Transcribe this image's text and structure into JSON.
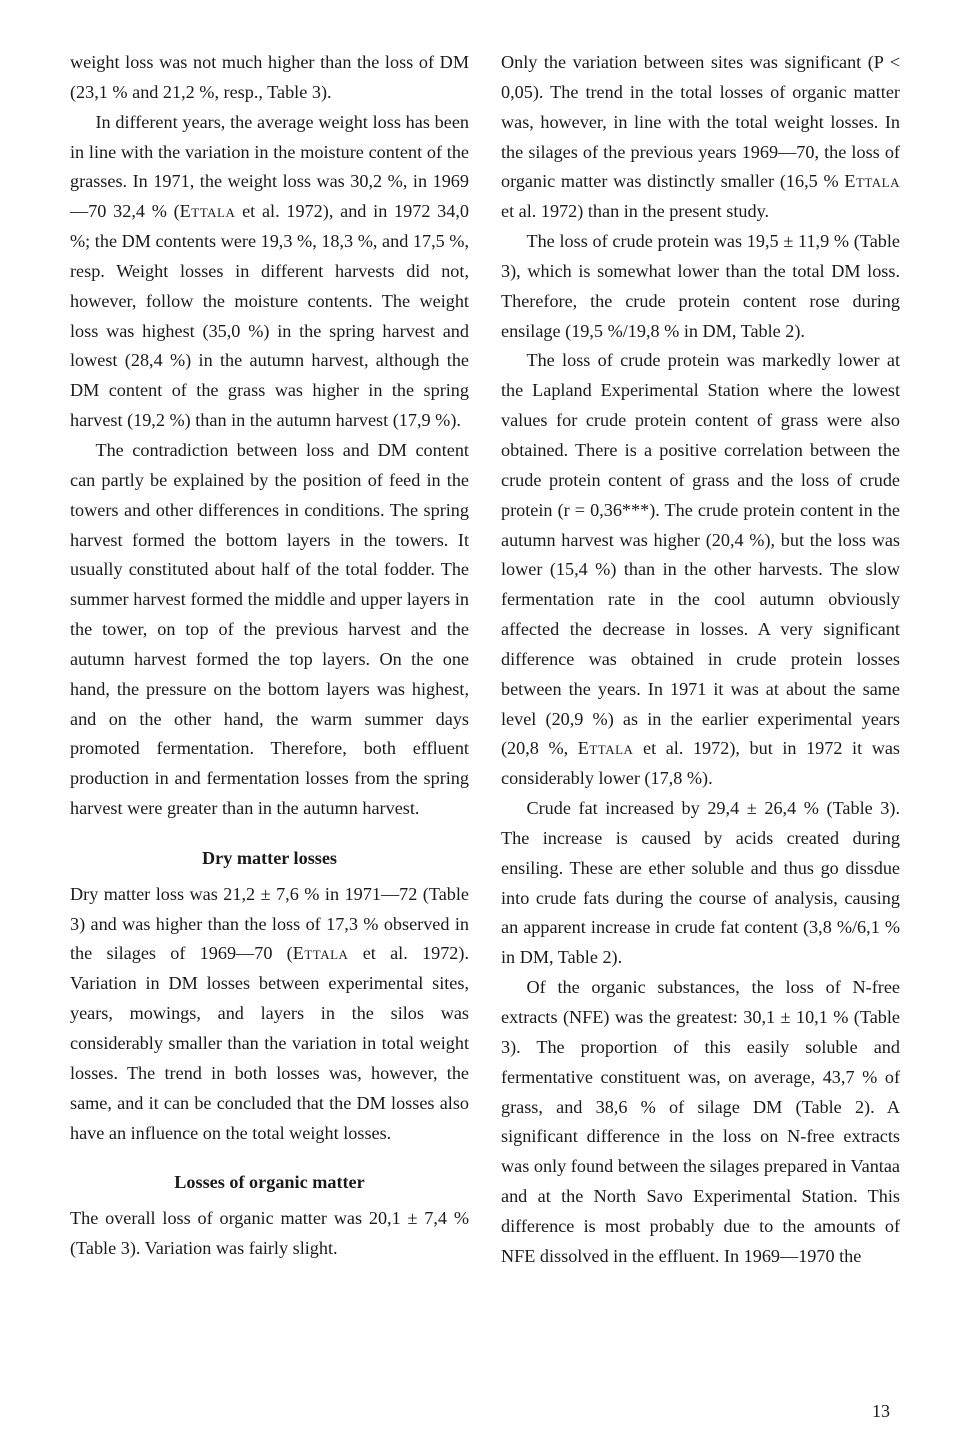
{
  "page_number": "13",
  "left": {
    "p1_a": "weight loss was not much higher than the loss of DM (23,1 % and 21,2 %, resp., Table 3).",
    "p2_a": "In different years, the average weight loss has been in line with the variation in the moisture content of the grasses. In 1971, the weight loss was 30,2 %, in 1969—70 32,4 % (",
    "p2_sc1": "Ettala",
    "p2_b": " et al. 1972), and in 1972 34,0 %; the DM contents were 19,3 %, 18,3 %, and 17,5 %, resp. Weight losses in different harvests did not, however, follow the moisture contents. The weight loss was highest (35,0 %) in the spring harvest and lowest (28,4 %) in the autumn harvest, although the DM content of the grass was higher in the spring harvest (19,2 %) than in the autumn harvest (17,9 %).",
    "p3_a": "The contradiction between loss and DM content can partly be explained by the position of feed in the towers and other differences in conditions. The spring harvest formed the bottom layers in the towers. It usually constituted about half of the total fodder. The summer harvest formed the middle and upper layers in the tower, on top of the previous harvest and the autumn harvest formed the top layers. On the one hand, the pressure on the bottom layers was highest, and on the other hand, the warm summer days promoted fermentation. Therefore, both effluent production in and fermentation losses from the spring harvest were greater than in the autumn harvest.",
    "h1": "Dry matter losses",
    "p4_a": "Dry matter loss was 21,2 ± 7,6 % in 1971—72 (Table 3) and was higher than the loss of 17,3 % observed in the silages of 1969—70 (",
    "p4_sc1": "Ettala",
    "p4_b": " et al. 1972). Variation in DM losses between experimental sites, years, mowings, and layers in the silos was considerably smaller than the variation in total weight losses. The trend in both losses was, however, the same, and it can be concluded that the DM losses also have an influence on the total weight losses.",
    "h2": "Losses of organic matter",
    "p5_a": "The overall loss of organic matter was 20,1 ± 7,4 % (Table 3). Variation was fairly slight."
  },
  "right": {
    "p1_a": "Only the variation between sites was significant (P < 0,05). The trend in the total losses of organic matter was, however, in line with the total weight losses. In the silages of the previous years 1969—70, the loss of organic matter was distinctly smaller (16,5 % ",
    "p1_sc1": "Ettala",
    "p1_b": " et al. 1972) than in the present study.",
    "p2_a": "The loss of crude protein was 19,5 ± 11,9 % (Table 3), which is somewhat lower than the total DM loss. Therefore, the crude protein content rose during ensilage (19,5 %/19,8 % in DM, Table 2).",
    "p3_a": "The loss of crude protein was markedly lower at the Lapland Experimental Station where the lowest values for crude protein content of grass were also obtained. There is a positive correlation between the crude protein content of grass and the loss of crude protein (r = 0,36***). The crude protein content in the autumn harvest was higher (20,4 %), but the loss was lower (15,4 %) than in the other harvests. The slow fermentation rate in the cool autumn obviously affected the decrease in losses. A very significant difference was obtained in crude protein losses between the years. In 1971 it was at about the same level (20,9 %) as in the earlier experimental years (20,8 %, ",
    "p3_sc1": "Ettala",
    "p3_b": " et al. 1972), but in 1972 it was considerably lower (17,8 %).",
    "p4_a": "Crude fat increased by 29,4 ± 26,4 % (Table 3). The increase is caused by acids created during ensiling. These are ether soluble and thus go dissdue into crude fats during the course of analysis, causing an apparent increase in crude fat content (3,8 %/6,1 % in DM, Table 2).",
    "p5_a": "Of the organic substances, the loss of N-free extracts (NFE) was the greatest: 30,1 ± 10,1 % (Table 3). The proportion of this easily soluble and fermentative constituent was, on average, 43,7 % of grass, and 38,6 % of silage DM (Table 2). A significant difference in the loss on N-free extracts was only found between the silages prepared in Vantaa and at the North Savo Experimental Station. This difference is most probably due to the amounts of NFE dissolved in the effluent. In 1969—1970 the"
  }
}
